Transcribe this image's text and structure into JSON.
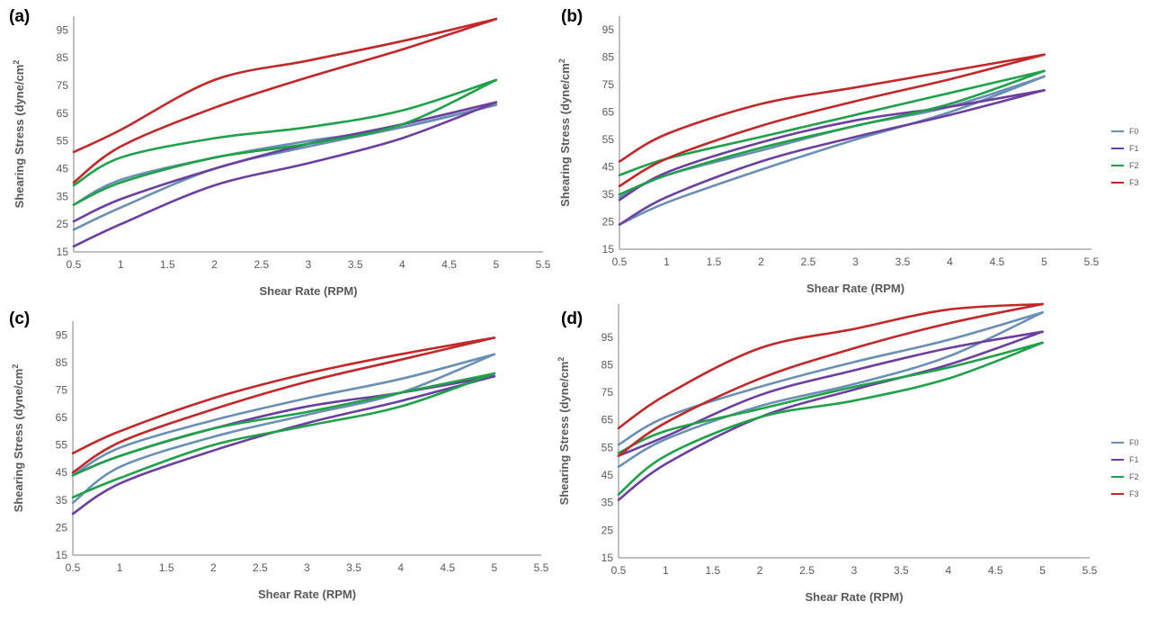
{
  "colors": {
    "F0": "#6a8fb4",
    "F1": "#6b3fa0",
    "F2": "#1fa14a",
    "F3": "#c0282a",
    "axis": "#7f7f7f"
  },
  "legend": [
    "F0",
    "F1",
    "F2",
    "F3"
  ],
  "chart_data": [
    {
      "type": "line",
      "panel_label": "(a)",
      "xlabel": "Shear Rate (RPM)",
      "ylabel": "Shearing Stress (dyne/cm",
      "ylabel_sup": "2",
      "xlim": [
        0.5,
        5.5
      ],
      "ylim": [
        15,
        100
      ],
      "xticks": [
        "0.5",
        "1",
        "1.5",
        "2",
        "2.5",
        "3",
        "3.5",
        "4",
        "4.5",
        "5",
        "5.5"
      ],
      "yticks": [
        "15",
        "25",
        "35",
        "45",
        "55",
        "65",
        "75",
        "85",
        "95"
      ],
      "show_legend": false,
      "series": [
        {
          "name": "F0",
          "up": [
            [
              0.5,
              23
            ],
            [
              1,
              31
            ],
            [
              2,
              45
            ],
            [
              3,
              53
            ],
            [
              4,
              60
            ],
            [
              5,
              68
            ]
          ],
          "down": [
            [
              5,
              68
            ],
            [
              4,
              60
            ],
            [
              3,
              55
            ],
            [
              2,
              49
            ],
            [
              1,
              41
            ],
            [
              0.5,
              32
            ]
          ]
        },
        {
          "name": "F1",
          "up": [
            [
              0.5,
              17
            ],
            [
              1,
              25
            ],
            [
              2,
              39
            ],
            [
              3,
              47
            ],
            [
              4,
              56
            ],
            [
              5,
              69
            ]
          ],
          "down": [
            [
              5,
              69
            ],
            [
              4,
              61
            ],
            [
              3,
              54
            ],
            [
              2,
              45
            ],
            [
              1,
              34
            ],
            [
              0.5,
              26
            ]
          ]
        },
        {
          "name": "F2",
          "up": [
            [
              0.5,
              32
            ],
            [
              1,
              40
            ],
            [
              2,
              49
            ],
            [
              3,
              54
            ],
            [
              4,
              61
            ],
            [
              5,
              77
            ]
          ],
          "down": [
            [
              5,
              77
            ],
            [
              4,
              66
            ],
            [
              3,
              60
            ],
            [
              2,
              56
            ],
            [
              1,
              49
            ],
            [
              0.5,
              39
            ]
          ]
        },
        {
          "name": "F3",
          "up": [
            [
              0.5,
              40
            ],
            [
              1,
              53
            ],
            [
              2,
              67
            ],
            [
              3,
              78
            ],
            [
              4,
              88
            ],
            [
              5,
              99
            ]
          ],
          "down": [
            [
              5,
              99
            ],
            [
              4,
              91
            ],
            [
              3,
              84
            ],
            [
              2,
              77
            ],
            [
              1,
              59
            ],
            [
              0.5,
              51
            ]
          ]
        }
      ]
    },
    {
      "type": "line",
      "panel_label": "(b)",
      "xlabel": "Shear Rate (RPM)",
      "ylabel": "Shearing Stress (dyne/cm",
      "ylabel_sup": "2",
      "xlim": [
        0.5,
        5.5
      ],
      "ylim": [
        15,
        100
      ],
      "xticks": [
        "0.5",
        "1",
        "1.5",
        "2",
        "2.5",
        "3",
        "3.5",
        "4",
        "4.5",
        "5",
        "5.5"
      ],
      "yticks": [
        "15",
        "25",
        "35",
        "45",
        "55",
        "65",
        "75",
        "85",
        "95"
      ],
      "show_legend": true,
      "series": [
        {
          "name": "F0",
          "up": [
            [
              0.5,
              24
            ],
            [
              1,
              32
            ],
            [
              2,
              44
            ],
            [
              3,
              55
            ],
            [
              4,
              65
            ],
            [
              5,
              78
            ]
          ],
          "down": [
            [
              5,
              78
            ],
            [
              4,
              67
            ],
            [
              3,
              60
            ],
            [
              2,
              51
            ],
            [
              1,
              42
            ],
            [
              0.5,
              34
            ]
          ]
        },
        {
          "name": "F1",
          "up": [
            [
              0.5,
              24
            ],
            [
              1,
              34
            ],
            [
              2,
              47
            ],
            [
              3,
              56
            ],
            [
              4,
              64
            ],
            [
              5,
              73
            ]
          ],
          "down": [
            [
              5,
              73
            ],
            [
              4,
              67
            ],
            [
              3,
              62
            ],
            [
              2,
              54
            ],
            [
              1,
              43
            ],
            [
              0.5,
              33
            ]
          ]
        },
        {
          "name": "F2",
          "up": [
            [
              0.5,
              35
            ],
            [
              1,
              42
            ],
            [
              2,
              52
            ],
            [
              3,
              60
            ],
            [
              4,
              68
            ],
            [
              5,
              80
            ]
          ],
          "down": [
            [
              5,
              80
            ],
            [
              4,
              72
            ],
            [
              3,
              64
            ],
            [
              2,
              56
            ],
            [
              1,
              48
            ],
            [
              0.5,
              42
            ]
          ]
        },
        {
          "name": "F3",
          "up": [
            [
              0.5,
              38
            ],
            [
              1,
              48
            ],
            [
              2,
              60
            ],
            [
              3,
              69
            ],
            [
              4,
              77
            ],
            [
              5,
              86
            ]
          ],
          "down": [
            [
              5,
              86
            ],
            [
              4,
              80
            ],
            [
              3,
              74
            ],
            [
              2,
              68
            ],
            [
              1,
              57
            ],
            [
              0.5,
              47
            ]
          ]
        }
      ]
    },
    {
      "type": "line",
      "panel_label": "(c)",
      "xlabel": "Shear Rate (RPM)",
      "ylabel": "Shearing Stress (dyne/cm",
      "ylabel_sup": "2",
      "xlim": [
        0.5,
        5.5
      ],
      "ylim": [
        15,
        100
      ],
      "xticks": [
        "0.5",
        "1",
        "1.5",
        "2",
        "2.5",
        "3",
        "3.5",
        "4",
        "4.5",
        "5",
        "5.5"
      ],
      "yticks": [
        "15",
        "25",
        "35",
        "45",
        "55",
        "65",
        "75",
        "85",
        "95"
      ],
      "show_legend": false,
      "series": [
        {
          "name": "F0",
          "up": [
            [
              0.5,
              34
            ],
            [
              1,
              47
            ],
            [
              2,
              58
            ],
            [
              3,
              66
            ],
            [
              4,
              74
            ],
            [
              5,
              88
            ]
          ],
          "down": [
            [
              5,
              88
            ],
            [
              4,
              79
            ],
            [
              3,
              72
            ],
            [
              2,
              64
            ],
            [
              1,
              54
            ],
            [
              0.5,
              44
            ]
          ]
        },
        {
          "name": "F1",
          "up": [
            [
              0.5,
              30
            ],
            [
              1,
              41
            ],
            [
              2,
              53
            ],
            [
              3,
              63
            ],
            [
              4,
              71
            ],
            [
              5,
              80
            ]
          ],
          "down": [
            [
              5,
              80
            ],
            [
              4,
              74
            ],
            [
              3,
              69
            ],
            [
              2,
              61
            ],
            [
              1,
              51
            ],
            [
              0.5,
              44
            ]
          ]
        },
        {
          "name": "F2",
          "up": [
            [
              0.5,
              36
            ],
            [
              1,
              43
            ],
            [
              2,
              55
            ],
            [
              3,
              62
            ],
            [
              4,
              69
            ],
            [
              5,
              81
            ]
          ],
          "down": [
            [
              5,
              81
            ],
            [
              4,
              74
            ],
            [
              3,
              67
            ],
            [
              2,
              61
            ],
            [
              1,
              51
            ],
            [
              0.5,
              44
            ]
          ]
        },
        {
          "name": "F3",
          "up": [
            [
              0.5,
              45
            ],
            [
              1,
              56
            ],
            [
              2,
              68
            ],
            [
              3,
              78
            ],
            [
              4,
              86
            ],
            [
              5,
              94
            ]
          ],
          "down": [
            [
              5,
              94
            ],
            [
              4,
              88
            ],
            [
              3,
              81
            ],
            [
              2,
              72
            ],
            [
              1,
              60
            ],
            [
              0.5,
              52
            ]
          ]
        }
      ]
    },
    {
      "type": "line",
      "panel_label": "(d)",
      "xlabel": "Shear Rate (RPM)",
      "ylabel": "Shearing Stress (dyne/cm",
      "ylabel_sup": "2",
      "xlim": [
        0.5,
        5.5
      ],
      "ylim": [
        15,
        107
      ],
      "xticks": [
        "0.5",
        "1",
        "1.5",
        "2",
        "2.5",
        "3",
        "3.5",
        "4",
        "4.5",
        "5",
        "5.5"
      ],
      "yticks": [
        "15",
        "25",
        "35",
        "45",
        "55",
        "65",
        "75",
        "85",
        "95"
      ],
      "show_legend": true,
      "series": [
        {
          "name": "F0",
          "up": [
            [
              0.5,
              48
            ],
            [
              1,
              58
            ],
            [
              2,
              70
            ],
            [
              3,
              78
            ],
            [
              4,
              88
            ],
            [
              5,
              104
            ]
          ],
          "down": [
            [
              5,
              104
            ],
            [
              4,
              94
            ],
            [
              3,
              86
            ],
            [
              2,
              77
            ],
            [
              1,
              66
            ],
            [
              0.5,
              56
            ]
          ]
        },
        {
          "name": "F1",
          "up": [
            [
              0.5,
              36
            ],
            [
              1,
              49
            ],
            [
              2,
              66
            ],
            [
              3,
              76
            ],
            [
              4,
              85
            ],
            [
              5,
              97
            ]
          ],
          "down": [
            [
              5,
              97
            ],
            [
              4,
              91
            ],
            [
              3,
              83
            ],
            [
              2,
              74
            ],
            [
              1,
              59
            ],
            [
              0.5,
              52
            ]
          ]
        },
        {
          "name": "F2",
          "up": [
            [
              0.5,
              38
            ],
            [
              1,
              52
            ],
            [
              2,
              66
            ],
            [
              3,
              72
            ],
            [
              4,
              80
            ],
            [
              5,
              93
            ]
          ],
          "down": [
            [
              5,
              93
            ],
            [
              4,
              84
            ],
            [
              3,
              77
            ],
            [
              2,
              69
            ],
            [
              1,
              61
            ],
            [
              0.5,
              53
            ]
          ]
        },
        {
          "name": "F3",
          "up": [
            [
              0.5,
              52
            ],
            [
              1,
              64
            ],
            [
              2,
              80
            ],
            [
              3,
              91
            ],
            [
              4,
              100
            ],
            [
              5,
              107
            ]
          ],
          "down": [
            [
              5,
              107
            ],
            [
              4,
              105
            ],
            [
              3,
              98
            ],
            [
              2,
              91
            ],
            [
              1,
              74
            ],
            [
              0.5,
              62
            ]
          ]
        }
      ]
    }
  ]
}
